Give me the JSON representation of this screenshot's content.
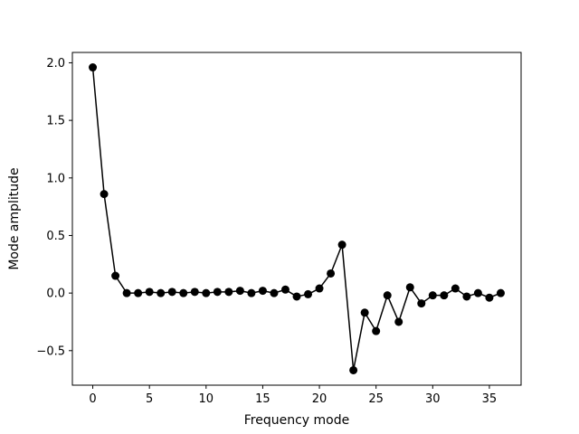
{
  "chart_data": {
    "type": "line",
    "title": "",
    "xlabel": "Frequency mode",
    "ylabel": "Mode amplitude",
    "xlim": [
      -1.8,
      37.8
    ],
    "ylim": [
      -0.8,
      2.09
    ],
    "xticks": [
      0,
      5,
      10,
      15,
      20,
      25,
      30,
      35
    ],
    "yticks": [
      -0.5,
      0.0,
      0.5,
      1.0,
      1.5,
      2.0
    ],
    "ytick_labels": [
      "−0.5",
      "0.0",
      "0.5",
      "1.0",
      "1.5",
      "2.0"
    ],
    "grid": false,
    "legend": "none",
    "series": [
      {
        "color": "#000000",
        "marker": "circle",
        "x": [
          0,
          1,
          2,
          3,
          4,
          5,
          6,
          7,
          8,
          9,
          10,
          11,
          12,
          13,
          14,
          15,
          16,
          17,
          18,
          19,
          20,
          21,
          22,
          23,
          24,
          25,
          26,
          27,
          28,
          29,
          30,
          31,
          32,
          33,
          34,
          35,
          36
        ],
        "y": [
          1.96,
          0.86,
          0.15,
          0.0,
          0.0,
          0.01,
          0.0,
          0.01,
          0.0,
          0.01,
          0.0,
          0.01,
          0.01,
          0.02,
          0.0,
          0.02,
          0.0,
          0.03,
          -0.03,
          -0.01,
          0.04,
          0.17,
          0.42,
          -0.67,
          -0.17,
          -0.33,
          -0.02,
          -0.25,
          0.05,
          -0.09,
          -0.02,
          -0.02,
          0.04,
          -0.03,
          0.0,
          -0.04,
          0.0
        ]
      }
    ]
  }
}
